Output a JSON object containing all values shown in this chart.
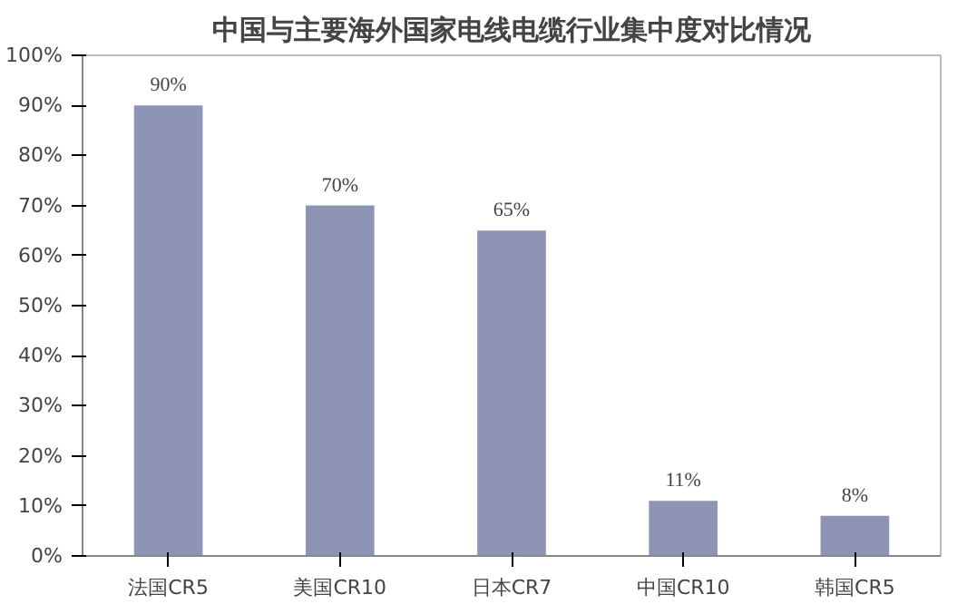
{
  "chart_data": {
    "type": "bar",
    "title": "中国与主要海外国家电线电缆行业集中度对比情况",
    "categories": [
      "法国CR5",
      "美国CR10",
      "日本CR7",
      "中国CR10",
      "韩国CR5"
    ],
    "values": [
      90,
      70,
      65,
      11,
      8
    ],
    "value_labels": [
      "90%",
      "70%",
      "65%",
      "11%",
      "8%"
    ],
    "color": "#8e94b4",
    "ylim": [
      0,
      100
    ],
    "yticks": [
      {
        "value": 0,
        "label": "0%"
      },
      {
        "value": 10,
        "label": "10%"
      },
      {
        "value": 20,
        "label": "20%"
      },
      {
        "value": 30,
        "label": "30%"
      },
      {
        "value": 40,
        "label": "40%"
      },
      {
        "value": 50,
        "label": "50%"
      },
      {
        "value": 60,
        "label": "60%"
      },
      {
        "value": 70,
        "label": "70%"
      },
      {
        "value": 80,
        "label": "80%"
      },
      {
        "value": 90,
        "label": "90%"
      },
      {
        "value": 100,
        "label": "100%"
      }
    ],
    "grid": false
  }
}
